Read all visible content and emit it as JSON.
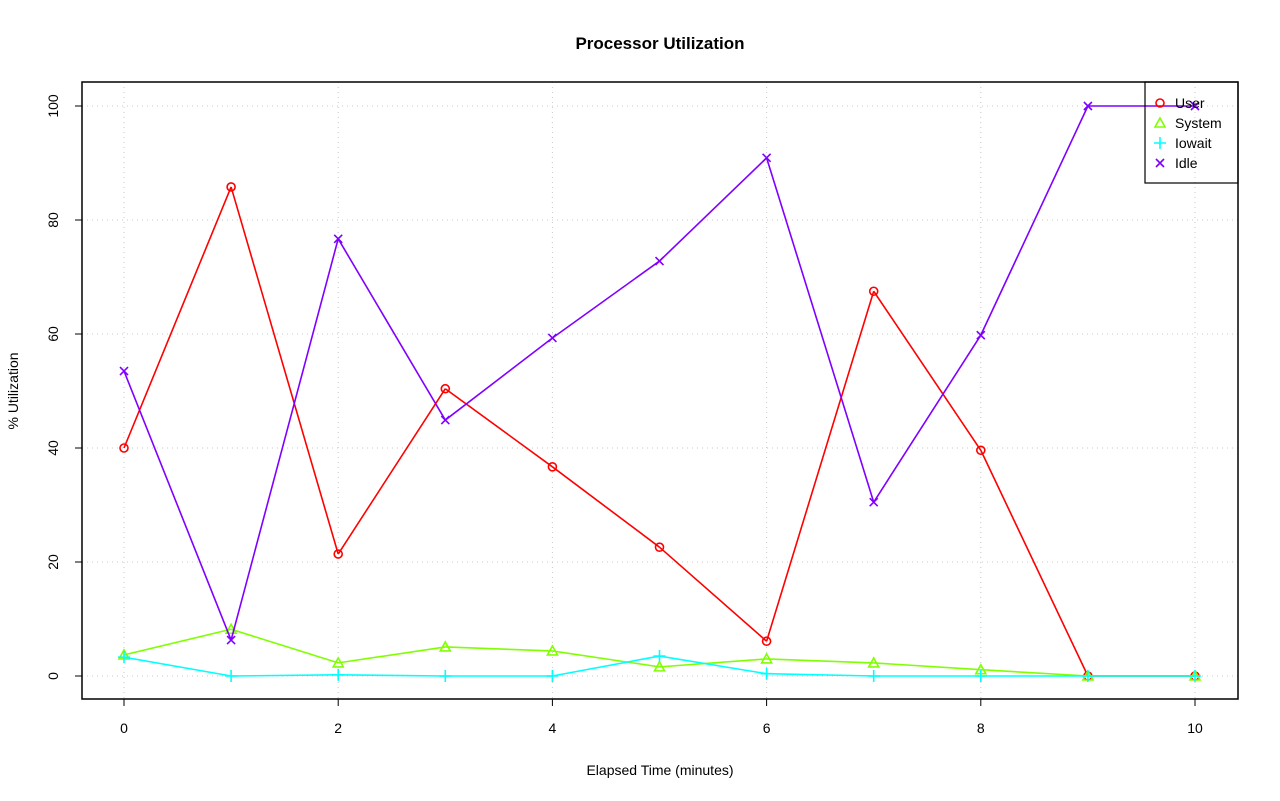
{
  "chart_data": {
    "type": "line",
    "title": "Processor Utilization",
    "xlabel": "Elapsed Time (minutes)",
    "ylabel": "% Utilization",
    "xlim": [
      0,
      10
    ],
    "ylim": [
      0,
      100
    ],
    "xticks": [
      0,
      2,
      4,
      6,
      8,
      10
    ],
    "yticks": [
      0,
      20,
      40,
      60,
      80,
      100
    ],
    "grid": true,
    "legend_position": "top-right",
    "x": [
      0,
      1,
      2,
      3,
      4,
      5,
      6,
      7,
      8,
      9,
      10
    ],
    "series": [
      {
        "name": "User",
        "color": "#ff0000",
        "marker": "circle",
        "values": [
          40.0,
          85.8,
          21.4,
          50.4,
          36.7,
          22.6,
          6.1,
          67.5,
          39.6,
          0,
          0
        ]
      },
      {
        "name": "System",
        "color": "#80ff00",
        "marker": "triangle",
        "values": [
          3.7,
          8.2,
          2.3,
          5.1,
          4.4,
          1.6,
          3.0,
          2.3,
          1.1,
          0,
          0
        ]
      },
      {
        "name": "Iowait",
        "color": "#00ffff",
        "marker": "plus",
        "values": [
          3.3,
          0,
          0.2,
          0,
          0,
          3.5,
          0.4,
          0,
          0,
          0,
          0
        ]
      },
      {
        "name": "Idle",
        "color": "#8000ff",
        "marker": "cross",
        "values": [
          53.5,
          6.3,
          76.7,
          44.9,
          59.3,
          72.8,
          90.9,
          30.5,
          59.8,
          100,
          100
        ]
      }
    ]
  }
}
